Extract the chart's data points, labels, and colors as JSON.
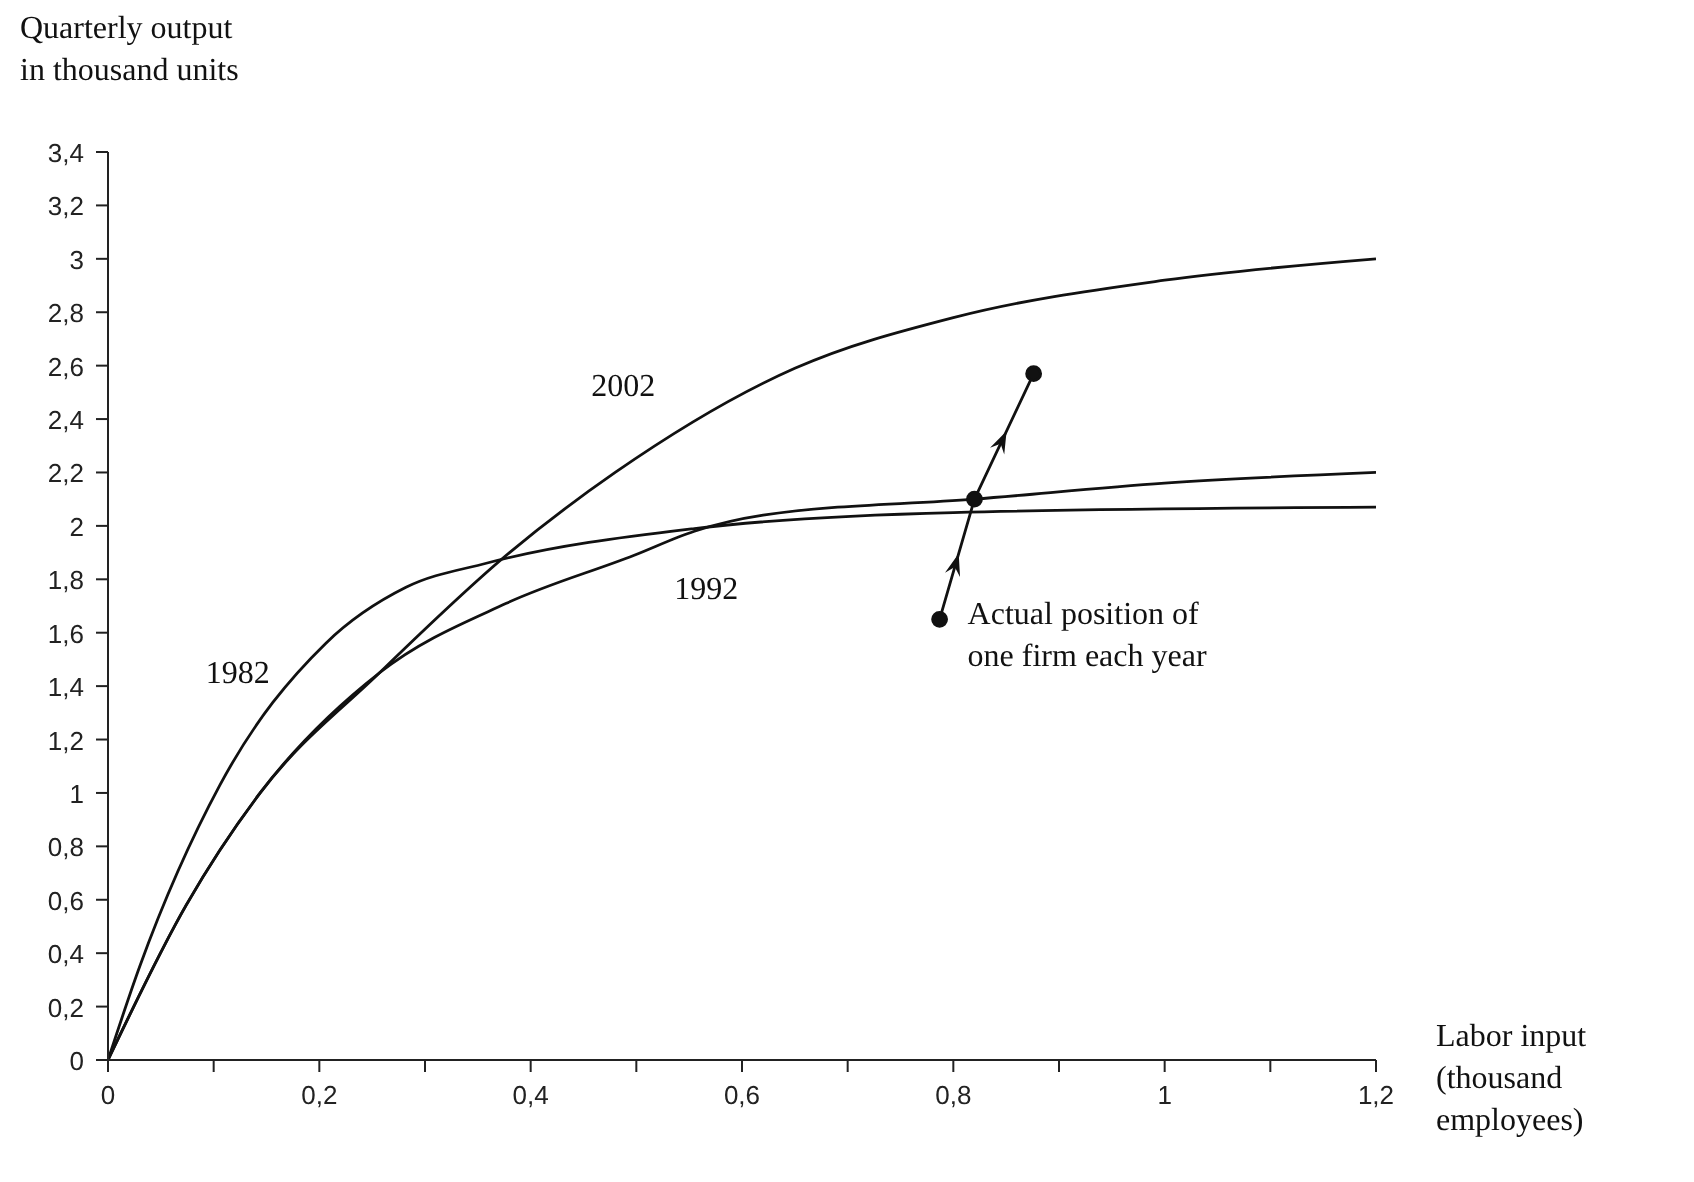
{
  "chart_data": {
    "type": "line",
    "xlabel": "Labor input (thousand employees)",
    "ylabel": "Quarterly output in thousand units",
    "xlim": [
      0,
      1.2
    ],
    "ylim": [
      0,
      3.4
    ],
    "xticks": [
      0,
      {
        "value": 0.1,
        "label": null
      },
      {
        "value": 0.2,
        "label": "0,2"
      },
      {
        "value": 0.3,
        "label": null
      },
      {
        "value": 0.4,
        "label": "0,4"
      },
      {
        "value": 0.5,
        "label": null
      },
      {
        "value": 0.6,
        "label": "0,6"
      },
      {
        "value": 0.7,
        "label": null
      },
      {
        "value": 0.8,
        "label": "0,8"
      },
      {
        "value": 0.9,
        "label": null
      },
      1,
      {
        "value": 1.1,
        "label": null
      },
      {
        "value": 1.2,
        "label": "1,2"
      }
    ],
    "yticks": [
      0,
      {
        "value": 0.2,
        "label": "0,2"
      },
      {
        "value": 0.4,
        "label": "0,4"
      },
      {
        "value": 0.6,
        "label": "0,6"
      },
      {
        "value": 0.8,
        "label": "0,8"
      },
      1,
      {
        "value": 1.2,
        "label": "1,2"
      },
      {
        "value": 1.4,
        "label": "1,4"
      },
      {
        "value": 1.6,
        "label": "1,6"
      },
      {
        "value": 1.8,
        "label": "1,8"
      },
      2,
      {
        "value": 2.2,
        "label": "2,2"
      },
      {
        "value": 2.4,
        "label": "2,4"
      },
      {
        "value": 2.6,
        "label": "2,6"
      },
      {
        "value": 2.8,
        "label": "2,8"
      },
      3,
      {
        "value": 3.2,
        "label": "3,2"
      },
      {
        "value": 3.4,
        "label": "3,4"
      }
    ],
    "annotations": [
      {
        "text": "Actual position of one firm each year",
        "x": 0.787,
        "y": 1.65
      }
    ],
    "series": [
      {
        "name": "1982",
        "color": "#111111",
        "marker": "none",
        "x": [
          0,
          0.03,
          0.106,
          0.206,
          0.282,
          0.358,
          0.555,
          0.8,
          1.2
        ],
        "values": [
          0,
          0.35,
          1.03,
          1.56,
          1.77,
          1.86,
          1.99,
          2.05,
          2.07
        ]
      },
      {
        "name": "1992",
        "color": "#111111",
        "marker": "none",
        "x": [
          0,
          0.074,
          0.144,
          0.257,
          0.377,
          0.498,
          0.555,
          0.62,
          0.82,
          1.0,
          1.2
        ],
        "values": [
          0,
          0.58,
          1.0,
          1.45,
          1.71,
          1.89,
          1.98,
          2.04,
          2.1,
          2.16,
          2.2
        ]
      },
      {
        "name": "2002",
        "color": "#111111",
        "marker": "none",
        "x": [
          0,
          0.074,
          0.144,
          0.257,
          0.38,
          0.48,
          0.65,
          0.8,
          1.0,
          1.2
        ],
        "values": [
          0,
          0.58,
          1.0,
          1.45,
          1.9,
          2.2,
          2.59,
          2.78,
          2.92,
          3.0
        ]
      },
      {
        "color": "#111111",
        "marker": "circle",
        "type": "line",
        "x": [
          0.787,
          0.82,
          0.876
        ],
        "values": [
          1.65,
          2.1,
          2.57
        ]
      }
    ]
  }
}
